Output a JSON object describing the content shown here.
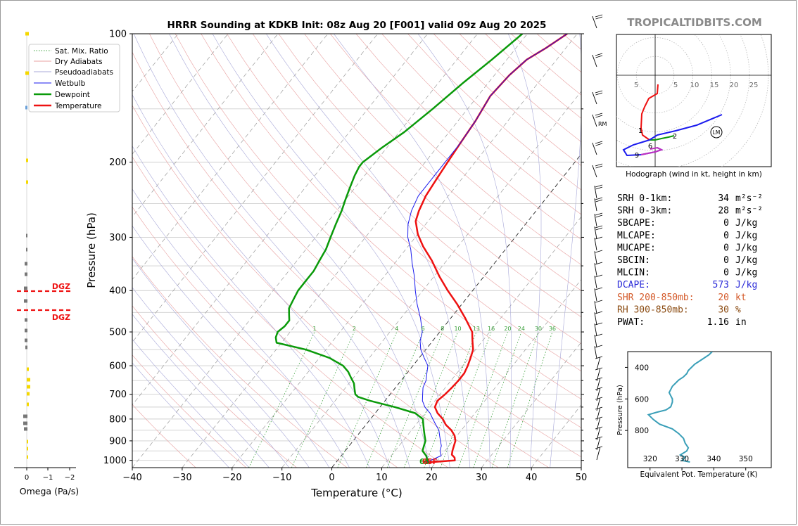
{
  "chart_data": [
    {
      "type": "line",
      "title": "HRRR Sounding at KDKB Init: 08z Aug 20 [F001] valid 09z Aug 20 2025",
      "xlabel": "Temperature (°C)",
      "ylabel": "Pressure (hPa)",
      "xlim": [
        -40,
        50
      ],
      "ylim": [
        1040,
        100
      ],
      "y_scale": "log",
      "x_ticks": [
        "−40",
        "−30",
        "−20",
        "−10",
        "0",
        "10",
        "20",
        "30",
        "40",
        "50"
      ],
      "y_ticks": [
        "100",
        "200",
        "300",
        "400",
        "500",
        "600",
        "700",
        "800",
        "900",
        "1000"
      ],
      "legend_position": "top-left",
      "legend": [
        "Sat. Mix. Ratio",
        "Dry Adiabats",
        "Pseudoadiabats",
        "Wetbulb",
        "Dewpoint",
        "Temperature"
      ],
      "mixing_ratio_labels": [
        "1",
        "2",
        "4",
        "6",
        "8",
        "10",
        "13",
        "16",
        "20",
        "24",
        "30",
        "36"
      ],
      "surface_temp_label": "65F",
      "surface_dewpoint_label": "65",
      "series": [
        {
          "name": "Temperature",
          "color": "#ee1111",
          "points": [
            [
              18,
              1012
            ],
            [
              23.5,
              1000
            ],
            [
              23,
              985
            ],
            [
              22,
              970
            ],
            [
              21.5,
              950
            ],
            [
              21,
              925
            ],
            [
              20.5,
              900
            ],
            [
              19.5,
              875
            ],
            [
              18,
              850
            ],
            [
              16,
              825
            ],
            [
              14.5,
              800
            ],
            [
              12.5,
              775
            ],
            [
              11,
              750
            ],
            [
              10.5,
              725
            ],
            [
              11,
              700
            ],
            [
              11.3,
              675
            ],
            [
              11.5,
              650
            ],
            [
              11.5,
              625
            ],
            [
              11,
              600
            ],
            [
              10.3,
              575
            ],
            [
              9.5,
              550
            ],
            [
              8,
              525
            ],
            [
              6.5,
              500
            ],
            [
              3,
              465
            ],
            [
              -1,
              430
            ],
            [
              -5,
              400
            ],
            [
              -9,
              370
            ],
            [
              -13,
              340
            ],
            [
              -17,
              315
            ],
            [
              -20,
              295
            ],
            [
              -22.5,
              275
            ],
            [
              -23.5,
              260
            ],
            [
              -24.5,
              240
            ],
            [
              -25,
              220
            ],
            [
              -25.5,
              200
            ],
            [
              -26,
              180
            ],
            [
              -26.5,
              160
            ],
            [
              -27.5,
              140
            ],
            [
              -27,
              125
            ],
            [
              -26,
              115
            ],
            [
              -24,
              108
            ],
            [
              -22,
              100
            ]
          ]
        },
        {
          "name": "Dewpoint",
          "color": "#0a9a0a",
          "points": [
            [
              17.5,
              1012
            ],
            [
              18,
              1000
            ],
            [
              17,
              975
            ],
            [
              15.5,
              950
            ],
            [
              15,
              925
            ],
            [
              14.5,
              900
            ],
            [
              13.5,
              875
            ],
            [
              12.5,
              850
            ],
            [
              11.5,
              825
            ],
            [
              10.5,
              800
            ],
            [
              8,
              775
            ],
            [
              3,
              750
            ],
            [
              -3,
              725
            ],
            [
              -6,
              710
            ],
            [
              -7,
              700
            ],
            [
              -8,
              680
            ],
            [
              -9,
              660
            ],
            [
              -10.5,
              640
            ],
            [
              -12,
              620
            ],
            [
              -14,
              600
            ],
            [
              -18,
              575
            ],
            [
              -24,
              550
            ],
            [
              -31,
              530
            ],
            [
              -32,
              515
            ],
            [
              -32.5,
              500
            ],
            [
              -32,
              485
            ],
            [
              -32,
              470
            ],
            [
              -33,
              455
            ],
            [
              -34,
              440
            ],
            [
              -34.5,
              420
            ],
            [
              -35,
              400
            ],
            [
              -35,
              380
            ],
            [
              -35,
              360
            ],
            [
              -35.5,
              340
            ],
            [
              -36,
              320
            ],
            [
              -37,
              300
            ],
            [
              -38,
              280
            ],
            [
              -39,
              260
            ],
            [
              -40,
              245
            ],
            [
              -41,
              230
            ],
            [
              -42,
              215
            ],
            [
              -42.5,
              205
            ],
            [
              -42.5,
              200
            ],
            [
              -41,
              185
            ],
            [
              -39,
              170
            ],
            [
              -37,
              150
            ],
            [
              -35,
              130
            ],
            [
              -33,
              115
            ],
            [
              -31,
              100
            ]
          ]
        },
        {
          "name": "Wetbulb",
          "color": "#1a1aee",
          "points": [
            [
              18,
              1012
            ],
            [
              20,
              975
            ],
            [
              19,
              950
            ],
            [
              18.5,
              925
            ],
            [
              17.5,
              900
            ],
            [
              16.5,
              875
            ],
            [
              15.5,
              850
            ],
            [
              14,
              825
            ],
            [
              12.5,
              800
            ],
            [
              11,
              775
            ],
            [
              9,
              750
            ],
            [
              7.5,
              725
            ],
            [
              6.5,
              700
            ],
            [
              5.5,
              675
            ],
            [
              5,
              650
            ],
            [
              4,
              625
            ],
            [
              3,
              600
            ],
            [
              1,
              575
            ],
            [
              -1,
              550
            ],
            [
              -2.5,
              525
            ],
            [
              -3.5,
              500
            ],
            [
              -6,
              465
            ],
            [
              -9,
              430
            ],
            [
              -11.5,
              400
            ],
            [
              -14,
              370
            ],
            [
              -16.5,
              345
            ],
            [
              -19,
              320
            ],
            [
              -21.5,
              300
            ],
            [
              -23.5,
              280
            ],
            [
              -25,
              260
            ],
            [
              -26,
              240
            ],
            [
              -26,
              220
            ],
            [
              -26,
              200
            ],
            [
              -26,
              180
            ],
            [
              -26.5,
              160
            ],
            [
              -27.5,
              140
            ],
            [
              -27,
              125
            ],
            [
              -26,
              115
            ],
            [
              -24,
              108
            ],
            [
              -22,
              100
            ]
          ]
        }
      ]
    },
    {
      "type": "line",
      "title": "",
      "xlabel": "Omega (Pa/s)",
      "x_ticks": [
        "0",
        "−1",
        "−2"
      ],
      "labels": [
        "DGZ",
        "DGZ"
      ]
    },
    {
      "type": "line",
      "title": "",
      "xlabel": "Hodograph (wind in kt, height in km)",
      "ring_labels": [
        "5",
        "5",
        "10",
        "15",
        "20",
        "25"
      ],
      "height_labels": [
        "1",
        "2",
        "6",
        "9"
      ],
      "markers": [
        "RM",
        "LM"
      ]
    },
    {
      "type": "line",
      "xlabel": "Equivalent Pot. Temperature (K)",
      "ylabel": "Pressure (hPa)",
      "xlim": [
        313,
        358
      ],
      "ylim": [
        1000,
        300
      ],
      "x_ticks": [
        "320",
        "330",
        "340",
        "350"
      ],
      "y_ticks": [
        "400",
        "600",
        "800"
      ],
      "series": [
        {
          "color": "#3a9fb8",
          "points": [
            [
              332.5,
              1000
            ],
            [
              330,
              990
            ],
            [
              331,
              970
            ],
            [
              329.5,
              955
            ],
            [
              331.5,
              930
            ],
            [
              332,
              910
            ],
            [
              331,
              880
            ],
            [
              330.5,
              850
            ],
            [
              329,
              820
            ],
            [
              327,
              790
            ],
            [
              323,
              760
            ],
            [
              321,
              730
            ],
            [
              319.5,
              700
            ],
            [
              322,
              685
            ],
            [
              325,
              670
            ],
            [
              326.5,
              650
            ],
            [
              327,
              620
            ],
            [
              327,
              600
            ],
            [
              326.5,
              580
            ],
            [
              326,
              560
            ],
            [
              326.5,
              540
            ],
            [
              327,
              520
            ],
            [
              328,
              500
            ],
            [
              329,
              480
            ],
            [
              330.5,
              460
            ],
            [
              331.5,
              440
            ],
            [
              332,
              420
            ],
            [
              333,
              400
            ],
            [
              334,
              380
            ],
            [
              335.5,
              360
            ],
            [
              337,
              340
            ],
            [
              338.5,
              320
            ],
            [
              339.5,
              300
            ]
          ]
        }
      ]
    }
  ],
  "header": {
    "brand": "TROPICALTIDBITS.COM"
  },
  "stats": [
    {
      "label": "SRH 0-1km:",
      "value": "34",
      "unit": "m²s⁻²",
      "color": "#000000"
    },
    {
      "label": "SRH 0-3km:",
      "value": "28",
      "unit": "m²s⁻²",
      "color": "#000000"
    },
    {
      "label": "SBCAPE:",
      "value": "0",
      "unit": "J/kg",
      "color": "#000000"
    },
    {
      "label": "MLCAPE:",
      "value": "0",
      "unit": "J/kg",
      "color": "#000000"
    },
    {
      "label": "MUCAPE:",
      "value": "0",
      "unit": "J/kg",
      "color": "#000000"
    },
    {
      "label": "SBCIN:",
      "value": "0",
      "unit": "J/kg",
      "color": "#000000"
    },
    {
      "label": "MLCIN:",
      "value": "0",
      "unit": "J/kg",
      "color": "#000000"
    },
    {
      "label": "DCAPE:",
      "value": "573",
      "unit": "J/kg",
      "color": "#2a2ad8"
    },
    {
      "label": "SHR 200-850mb:",
      "value": "20",
      "unit": "kt",
      "color": "#d45a2a"
    },
    {
      "label": "RH 300-850mb:",
      "value": "30",
      "unit": "%",
      "color": "#8a4a10"
    },
    {
      "label": "PWAT:",
      "value": "1.16",
      "unit": "in",
      "color": "#000000"
    }
  ]
}
